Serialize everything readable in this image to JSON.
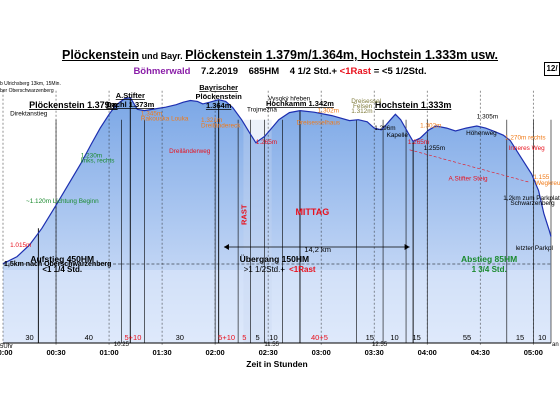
{
  "title": {
    "part1": "Plöckenstein",
    "und": " und Bayr. ",
    "part2": "Plöckenstein 1.379m/1.364m,",
    "part3": " Hochstein 1.333m",
    "part4": " usw."
  },
  "subtitle": {
    "region": "Böhmerwald",
    "date": "7.2.2019",
    "hm": "685HM",
    "time": "4 1/2 Std.+",
    "rast": "<1Rast",
    "total": "= <5 1/2Std."
  },
  "page_badge": "12/",
  "corner_note": [
    "b Ulrichsberg 13km, 15Min.",
    "ber Oberschwarzenberg"
  ],
  "colors": {
    "sky": "#ffffff",
    "fill_top": "#7ba7e6",
    "fill_bottom": "#dfe9fb",
    "profile": "#1d2fb0",
    "orange": "#f07a17",
    "red": "#e8101c",
    "green": "#1a8a2e",
    "purple": "#8a1ea8",
    "lightgreen_text": "#7e7a3a",
    "ground": "#d8d8d8"
  },
  "chart_data": {
    "type": "area",
    "title": "Plöckenstein und Bayr. Plöckenstein 1.379m/1.364m, Hochstein 1.333m usw.",
    "xlabel": "Zeit in Stunden",
    "ylabel": "",
    "x_ticks": [
      "00:00",
      "00:30",
      "01:00",
      "01:30",
      "02:00",
      "02:30",
      "03:00",
      "03:30",
      "04:00",
      "04:30",
      "05:00"
    ],
    "x_ticks_minutes": [
      0,
      30,
      60,
      90,
      120,
      150,
      180,
      210,
      240,
      270,
      300
    ],
    "xlim_minutes": [
      0,
      310
    ],
    "ylim_m": [
      960,
      1420
    ],
    "minor_time_labels": [
      {
        "t": 67,
        "label": "10:25"
      },
      {
        "t": 152,
        "label": "11:55"
      },
      {
        "t": 213,
        "label": "12:55"
      }
    ],
    "profile": [
      [
        0,
        975
      ],
      [
        8,
        992
      ],
      [
        15,
        1020
      ],
      [
        22,
        1060
      ],
      [
        30,
        1115
      ],
      [
        37,
        1165
      ],
      [
        44,
        1215
      ],
      [
        50,
        1262
      ],
      [
        55,
        1300
      ],
      [
        60,
        1333
      ],
      [
        63,
        1350
      ],
      [
        66,
        1362
      ],
      [
        69,
        1371
      ],
      [
        72,
        1373
      ],
      [
        76,
        1345
      ],
      [
        80,
        1342
      ],
      [
        86,
        1346
      ],
      [
        92,
        1350
      ],
      [
        98,
        1356
      ],
      [
        102,
        1362
      ],
      [
        106,
        1366
      ],
      [
        110,
        1364
      ],
      [
        113,
        1358
      ],
      [
        117,
        1362
      ],
      [
        122,
        1368
      ],
      [
        126,
        1364
      ],
      [
        130,
        1349
      ],
      [
        135,
        1320
      ],
      [
        140,
        1285
      ],
      [
        143,
        1265
      ],
      [
        148,
        1280
      ],
      [
        152,
        1300
      ],
      [
        156,
        1320
      ],
      [
        162,
        1337
      ],
      [
        168,
        1342
      ],
      [
        176,
        1338
      ],
      [
        186,
        1330
      ],
      [
        196,
        1318
      ],
      [
        201,
        1320
      ],
      [
        206,
        1315
      ],
      [
        210,
        1300
      ],
      [
        214,
        1296
      ],
      [
        216,
        1304
      ],
      [
        219,
        1319
      ],
      [
        222,
        1333
      ],
      [
        225,
        1320
      ],
      [
        229,
        1290
      ],
      [
        232,
        1268
      ],
      [
        236,
        1276
      ],
      [
        241,
        1296
      ],
      [
        245,
        1305
      ],
      [
        251,
        1300
      ],
      [
        256,
        1293
      ],
      [
        262,
        1300
      ],
      [
        268,
        1305
      ],
      [
        273,
        1300
      ],
      [
        278,
        1292
      ],
      [
        283,
        1283
      ],
      [
        287,
        1270
      ],
      [
        293,
        1230
      ],
      [
        299,
        1190
      ],
      [
        303,
        1150
      ],
      [
        306,
        1095
      ],
      [
        309,
        1055
      ],
      [
        310,
        1040
      ]
    ],
    "peaks": [
      {
        "t": 20,
        "label": "Plöckenstein 1.379m",
        "col": "black",
        "big": true
      },
      {
        "t": 72,
        "label": "A.Stifter",
        "label2": "Dachl 1.373m",
        "col": "black",
        "big": false
      },
      {
        "t": 122,
        "label": "Bayrischer",
        "label2": "Plöckenstein",
        "label3": "1.364m",
        "col": "black",
        "big": false
      },
      {
        "t": 168,
        "label": "Hochkamm 1.342m",
        "col": "black",
        "big": false
      },
      {
        "t": 232,
        "label": "Hochstein 1.333m",
        "col": "black",
        "big": true
      }
    ],
    "annotations": [
      {
        "t": 4,
        "y": 1015,
        "text": "1.015m",
        "color": "red"
      },
      {
        "t": 13,
        "y": 1120,
        "text": "~1.120m Lichtung Beginn",
        "color": "green"
      },
      {
        "t": 44,
        "y": 1230,
        "text": "1.230m",
        "color": "green"
      },
      {
        "t": 44,
        "y": 1218,
        "text": "links, rechts",
        "color": "green"
      },
      {
        "t": 4,
        "y": 1330,
        "text": "Direktanstieg",
        "color": "black"
      },
      {
        "t": 78,
        "y": 1330,
        "text": "1.345m",
        "color": "orange"
      },
      {
        "t": 78,
        "y": 1318,
        "text": "Rakouska Louka",
        "color": "orange"
      },
      {
        "t": 112,
        "y": 1314,
        "text": "1.321m",
        "color": "orange"
      },
      {
        "t": 112,
        "y": 1302,
        "text": "Dreiländereck",
        "color": "orange"
      },
      {
        "t": 94,
        "y": 1240,
        "text": "Dreiländerweg",
        "color": "red"
      },
      {
        "t": 138,
        "y": 1340,
        "text": "Trojmezna",
        "color": "black"
      },
      {
        "t": 150,
        "y": 1366,
        "text": "Vysoký hřeben",
        "color": "black"
      },
      {
        "t": 143,
        "y": 1262,
        "text": "1.265m",
        "color": "red"
      },
      {
        "t": 178,
        "y": 1337,
        "text": "1.302m",
        "color": "orange"
      },
      {
        "t": 166,
        "y": 1308,
        "text": "Dreisesselhaus",
        "color": "orange"
      },
      {
        "t": 197,
        "y": 1360,
        "text": "Dreisessel",
        "color": "olive"
      },
      {
        "t": 198,
        "y": 1348,
        "text": "Felsen",
        "color": "olive"
      },
      {
        "t": 197,
        "y": 1336,
        "text": "1.312m",
        "color": "olive"
      },
      {
        "t": 210,
        "y": 1295,
        "text": "1.296m",
        "color": "black"
      },
      {
        "t": 217,
        "y": 1279,
        "text": "Kapelle",
        "color": "black"
      },
      {
        "t": 229,
        "y": 1262,
        "text": "1.265m",
        "color": "red"
      },
      {
        "t": 236,
        "y": 1302,
        "text": "1.302m",
        "color": "orange"
      },
      {
        "t": 238,
        "y": 1248,
        "text": "1.255m",
        "color": "black"
      },
      {
        "t": 268,
        "y": 1323,
        "text": "1.305m",
        "color": "black"
      },
      {
        "t": 262,
        "y": 1283,
        "text": "Höhenweg",
        "color": "black"
      },
      {
        "t": 284,
        "y": 1273,
        "text": "1.270m rechts",
        "color": "orange"
      },
      {
        "t": 286,
        "y": 1248,
        "text": "Inneres Weg",
        "color": "red"
      },
      {
        "t": 252,
        "y": 1175,
        "text": "A.Stifter Steig",
        "color": "red"
      },
      {
        "t": 300,
        "y": 1178,
        "text": "1.155",
        "color": "orange"
      },
      {
        "t": 301,
        "y": 1164,
        "text": "Wegkreuz",
        "color": "orange"
      },
      {
        "t": 283,
        "y": 1128,
        "text": "1,2km zum Parkplatz",
        "color": "black"
      },
      {
        "t": 287,
        "y": 1116,
        "text": "Schwarzenberg",
        "color": "black"
      },
      {
        "t": 290,
        "y": 1008,
        "text": "letzter Parkpl",
        "color": "black"
      }
    ],
    "rast": {
      "t0": 136,
      "t1": 152,
      "label": "RAST",
      "mittag": "MITTAG"
    },
    "distance_label": "14,2 km",
    "start_note": "1,5km nach Oberschwarzenberg",
    "sections": [
      {
        "t0": 0,
        "t1": 67,
        "label": "Aufstieg 450HM",
        "sub": "<1 1/4 Std.",
        "color": "black"
      },
      {
        "t0": 67,
        "t1": 240,
        "label": "Übergang 150HM",
        "sub": ">1 1/2Std.+",
        "sub2": "<1Rast",
        "color": "black"
      },
      {
        "t0": 240,
        "t1": 310,
        "label": "Abstieg 85HM",
        "sub": "1 3/4 Std.",
        "color": "green"
      }
    ],
    "segment_durations": [
      {
        "t0": 0,
        "t1": 30,
        "label": "30",
        "color": "black"
      },
      {
        "t0": 30,
        "t1": 67,
        "label": "40",
        "color": "black"
      },
      {
        "t0": 67,
        "t1": 80,
        "label": "5+10",
        "color": "red"
      },
      {
        "t0": 80,
        "t1": 120,
        "label": "30",
        "color": "black"
      },
      {
        "t0": 120,
        "t1": 133,
        "label": "5+10",
        "color": "red"
      },
      {
        "t0": 133,
        "t1": 140,
        "label": "5",
        "color": "red"
      },
      {
        "t0": 140,
        "t1": 148,
        "label": "5",
        "color": "black"
      },
      {
        "t0": 148,
        "t1": 158,
        "label": "10",
        "color": "black"
      },
      {
        "t0": 158,
        "t1": 200,
        "label": "40+5",
        "color": "red"
      },
      {
        "t0": 200,
        "t1": 215,
        "label": "15",
        "color": "black"
      },
      {
        "t0": 215,
        "t1": 228,
        "label": "10",
        "color": "black"
      },
      {
        "t0": 228,
        "t1": 240,
        "label": "15",
        "color": "black"
      },
      {
        "t0": 240,
        "t1": 285,
        "label": "55",
        "color": "black"
      },
      {
        "t0": 285,
        "t1": 300,
        "label": "15",
        "color": "black"
      },
      {
        "t0": 300,
        "t1": 310,
        "label": "10",
        "color": "black"
      }
    ],
    "start_time_label": "5Uhr",
    "end_time_label": "an"
  }
}
